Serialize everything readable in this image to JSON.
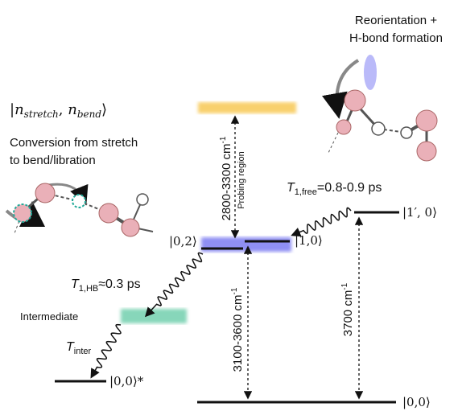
{
  "diagram": {
    "reorientation": [
      "Reorientation +",
      "H-bond formation"
    ],
    "notation": [
      "|",
      "n",
      "stretch",
      ", ",
      "n",
      "bend",
      "⟩"
    ],
    "conversion": [
      "Conversion from stretch",
      "to bend/libration"
    ],
    "probe_range": [
      "2800-3300 cm",
      "-1"
    ],
    "probing_region": "Probing region",
    "t1_free": [
      "T",
      "1,free",
      "=0.8-0.9 ps"
    ],
    "state_1p0": "|1′, 0⟩",
    "state_02": "|0,2⟩",
    "state_10": "|1,0⟩",
    "t1_hb": [
      "T",
      "1,HB",
      "≈0.3 ps"
    ],
    "intermediate": "Intermediate",
    "t_inter": [
      "T",
      "inter"
    ],
    "state_00_star": "|0,0⟩*",
    "range_3100": [
      "3100-3600 cm",
      "-1"
    ],
    "range_3700": [
      "3700 cm",
      "-1"
    ],
    "state_00": "|0,0⟩"
  }
}
